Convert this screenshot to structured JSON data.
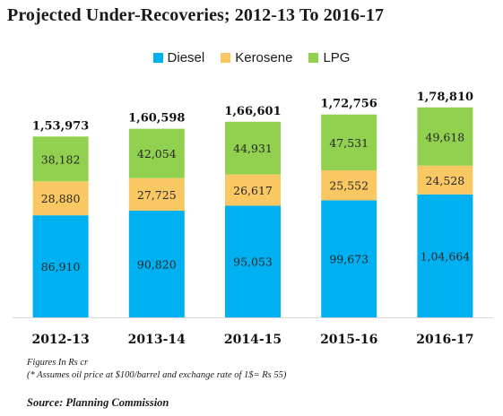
{
  "chart_data": {
    "type": "bar",
    "stacked": true,
    "title": "Projected Under-Recoveries; 2012-13 To 2016-17",
    "categories": [
      "2012-13",
      "2013-14",
      "2014-15",
      "2015-16",
      "2016-17"
    ],
    "series": [
      {
        "name": "Diesel",
        "color": "#00b0f0",
        "values": [
          86910,
          90820,
          95053,
          99673,
          104664
        ],
        "labels": [
          "86,910",
          "90,820",
          "95,053",
          "99,673",
          "1,04,664"
        ]
      },
      {
        "name": "Kerosene",
        "color": "#fac863",
        "values": [
          28880,
          27725,
          26617,
          25552,
          24528
        ],
        "labels": [
          "28,880",
          "27,725",
          "26,617",
          "25,552",
          "24,528"
        ]
      },
      {
        "name": "LPG",
        "color": "#92d050",
        "values": [
          38182,
          42054,
          44931,
          47531,
          49618
        ],
        "labels": [
          "38,182",
          "42,054",
          "44,931",
          "47,531",
          "49,618"
        ]
      }
    ],
    "totals": [
      153973,
      160598,
      166601,
      172756,
      178810
    ],
    "total_labels": [
      "1,53,973",
      "1,60,598",
      "1,66,601",
      "1,72,756",
      "1,78,810"
    ],
    "ylim": [
      0,
      200000
    ],
    "grid": false,
    "legend": "top-center",
    "xlabel": "",
    "ylabel": ""
  },
  "notes": {
    "units": "Figures In Rs cr",
    "assumption": "(* Assumes oil price at $100/barrel and exchange rate of 1$= Rs 55)",
    "source": "Source: Planning Commission"
  }
}
